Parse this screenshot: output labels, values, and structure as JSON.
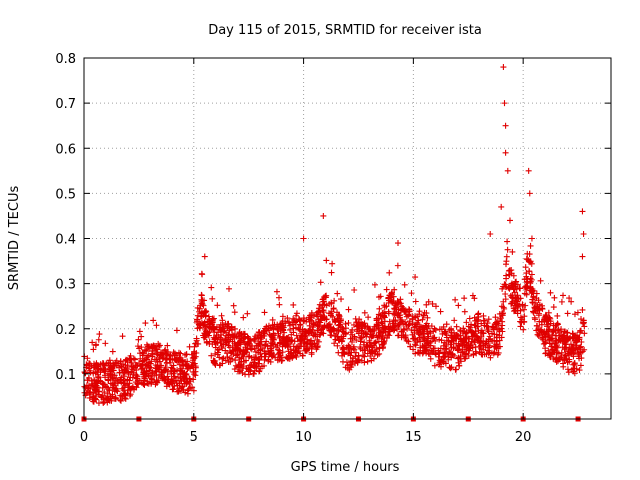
{
  "colors": {
    "points": "#e00000",
    "gap_marker": "#e00000"
  },
  "chart_data": {
    "type": "scatter",
    "title": "Day 115 of 2015, SRMTID for receiver ista",
    "xlabel": "GPS time / hours",
    "ylabel": "SRMTID / TECUs",
    "xlim": [
      0,
      24
    ],
    "ylim": [
      0,
      0.8
    ],
    "xticks": [
      0,
      5,
      10,
      15,
      20
    ],
    "xtick_labels": [
      "0",
      "5",
      "10",
      "15",
      "20"
    ],
    "yticks": [
      0,
      0.1,
      0.2,
      0.3,
      0.4,
      0.5,
      0.6,
      0.7,
      0.8
    ],
    "ytick_labels": [
      "0",
      "0.1",
      "0.2",
      "0.3",
      "0.4",
      "0.5",
      "0.6",
      "0.7",
      "0.8"
    ],
    "grid": true,
    "marker": "+",
    "zero_markers_x": [
      0,
      2.5,
      5,
      7.5,
      10,
      12.5,
      15,
      17.5,
      20,
      22.5
    ],
    "series": [
      {
        "name": "SRMTID",
        "envelope_x": [
          0.0,
          0.5,
          1.0,
          1.5,
          2.0,
          2.5,
          3.0,
          3.5,
          4.0,
          4.5,
          5.0,
          5.25,
          5.5,
          6.0,
          6.5,
          7.0,
          7.5,
          8.0,
          8.5,
          9.0,
          9.5,
          10.0,
          10.5,
          11.0,
          11.5,
          12.0,
          12.5,
          13.0,
          13.5,
          14.0,
          14.5,
          15.0,
          15.5,
          16.0,
          16.5,
          17.0,
          17.5,
          18.0,
          18.5,
          19.0,
          19.25,
          19.5,
          20.0,
          20.25,
          20.5,
          21.0,
          21.5,
          22.0,
          22.5,
          22.8
        ],
        "envelope_y": [
          0.1,
          0.08,
          0.08,
          0.08,
          0.09,
          0.12,
          0.12,
          0.12,
          0.11,
          0.1,
          0.1,
          0.24,
          0.22,
          0.16,
          0.17,
          0.15,
          0.14,
          0.15,
          0.17,
          0.17,
          0.18,
          0.18,
          0.19,
          0.24,
          0.2,
          0.15,
          0.17,
          0.17,
          0.19,
          0.24,
          0.22,
          0.19,
          0.19,
          0.16,
          0.16,
          0.15,
          0.18,
          0.19,
          0.18,
          0.19,
          0.33,
          0.28,
          0.24,
          0.35,
          0.25,
          0.19,
          0.17,
          0.15,
          0.14,
          0.18
        ],
        "spread": 0.045,
        "point_count": 2600,
        "peaks": [
          {
            "x": 5.5,
            "y": 0.36
          },
          {
            "x": 10.0,
            "y": 0.4
          },
          {
            "x": 10.9,
            "y": 0.45
          },
          {
            "x": 14.3,
            "y": 0.39
          },
          {
            "x": 18.5,
            "y": 0.41
          },
          {
            "x": 19.1,
            "y": 0.78
          },
          {
            "x": 19.15,
            "y": 0.7
          },
          {
            "x": 19.2,
            "y": 0.65
          },
          {
            "x": 19.2,
            "y": 0.59
          },
          {
            "x": 19.3,
            "y": 0.55
          },
          {
            "x": 20.25,
            "y": 0.55
          },
          {
            "x": 20.3,
            "y": 0.5
          },
          {
            "x": 20.4,
            "y": 0.4
          },
          {
            "x": 22.7,
            "y": 0.46
          },
          {
            "x": 22.75,
            "y": 0.41
          },
          {
            "x": 22.7,
            "y": 0.36
          },
          {
            "x": 19.0,
            "y": 0.47
          },
          {
            "x": 19.4,
            "y": 0.44
          }
        ]
      }
    ]
  }
}
